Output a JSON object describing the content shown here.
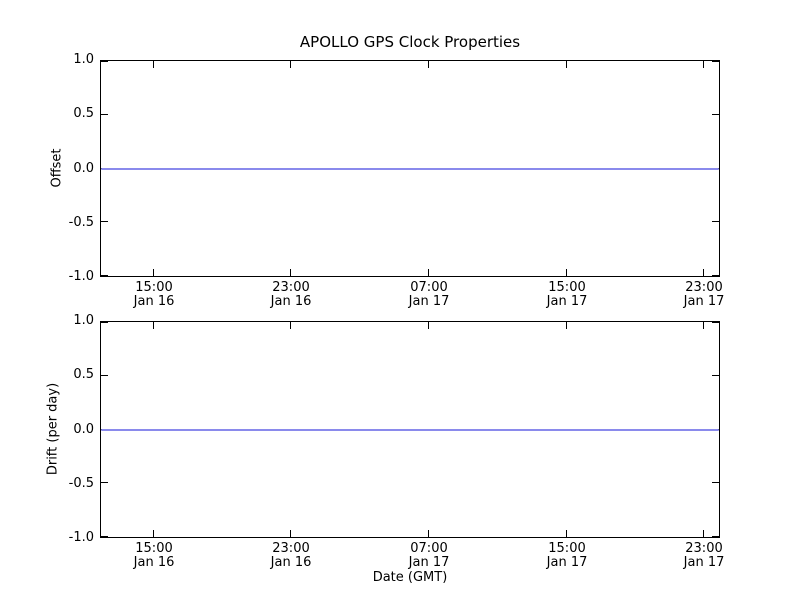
{
  "colors": {
    "background": "#ffffff",
    "spine": "#000000",
    "text": "#000000",
    "line": "#8a8aec"
  },
  "chart_data": [
    {
      "type": "line",
      "subplot": "top",
      "title": "APOLLO GPS Clock Properties",
      "ylabel": "Offset",
      "ylim": [
        -1.0,
        1.0
      ],
      "yticks": [
        "1.0",
        "0.5",
        "0.0",
        "-0.5",
        "-1.0"
      ],
      "xtick_labels": [
        {
          "time": "15:00",
          "date": "Jan 16"
        },
        {
          "time": "23:00",
          "date": "Jan 16"
        },
        {
          "time": "07:00",
          "date": "Jan 17"
        },
        {
          "time": "15:00",
          "date": "Jan 17"
        },
        {
          "time": "23:00",
          "date": "Jan 17"
        }
      ],
      "series": [
        {
          "name": "Offset",
          "values": [
            0,
            0,
            0,
            0,
            0
          ]
        }
      ],
      "grid": false,
      "legend": "none",
      "line_color": "#8a8aec"
    },
    {
      "type": "line",
      "subplot": "bottom",
      "ylabel": "Drift (per day)",
      "xlabel": "Date (GMT)",
      "ylim": [
        -1.0,
        1.0
      ],
      "yticks": [
        "1.0",
        "0.5",
        "0.0",
        "-0.5",
        "-1.0"
      ],
      "xtick_labels": [
        {
          "time": "15:00",
          "date": "Jan 16"
        },
        {
          "time": "23:00",
          "date": "Jan 16"
        },
        {
          "time": "07:00",
          "date": "Jan 17"
        },
        {
          "time": "15:00",
          "date": "Jan 17"
        },
        {
          "time": "23:00",
          "date": "Jan 17"
        }
      ],
      "series": [
        {
          "name": "Drift",
          "values": [
            0,
            0,
            0,
            0,
            0
          ]
        }
      ],
      "grid": false,
      "legend": "none",
      "line_color": "#8a8aec"
    }
  ]
}
